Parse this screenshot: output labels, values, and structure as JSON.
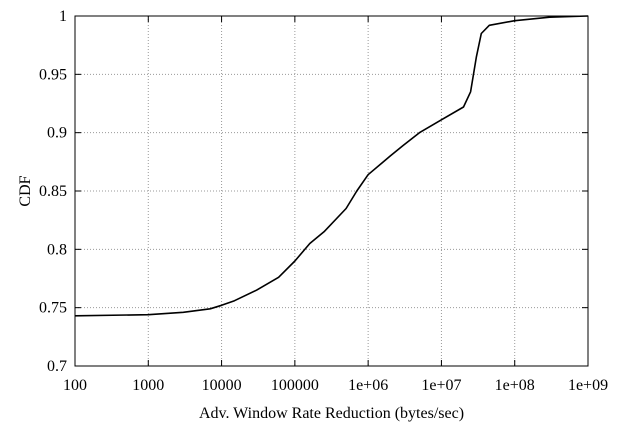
{
  "chart_data": {
    "type": "line",
    "title": "",
    "xlabel": "Adv. Window Rate Reduction (bytes/sec)",
    "ylabel": "CDF",
    "x_scale": "log",
    "xlim": [
      100,
      1000000000
    ],
    "ylim": [
      0.7,
      1.0
    ],
    "x_ticks": [
      100,
      1000,
      10000,
      100000,
      1000000,
      10000000,
      100000000,
      1000000000
    ],
    "x_tick_labels": [
      "100",
      "1000",
      "10000",
      "100000",
      "1e+06",
      "1e+07",
      "1e+08",
      "1e+09"
    ],
    "y_ticks": [
      0.7,
      0.75,
      0.8,
      0.85,
      0.9,
      0.95,
      1.0
    ],
    "y_tick_labels": [
      "0.7",
      "0.75",
      "0.8",
      "0.85",
      "0.9",
      "0.95",
      "1"
    ],
    "grid": true,
    "legend": "none",
    "series": [
      {
        "x": [
          100,
          1000,
          3000,
          7000,
          10000,
          15000,
          30000,
          60000,
          100000,
          160000,
          250000,
          500000,
          700000,
          1000000,
          2000000,
          3000000,
          5000000,
          10000000,
          20000000,
          25000000,
          30000000,
          35000000,
          45000000,
          100000000,
          300000000,
          1000000000
        ],
        "y": [
          0.743,
          0.744,
          0.746,
          0.749,
          0.752,
          0.756,
          0.765,
          0.776,
          0.79,
          0.805,
          0.815,
          0.835,
          0.85,
          0.864,
          0.88,
          0.889,
          0.9,
          0.911,
          0.922,
          0.935,
          0.965,
          0.985,
          0.992,
          0.996,
          0.999,
          1.0
        ]
      }
    ],
    "colors": {
      "line": "#000000",
      "grid": "#9a9a9a",
      "frame": "#000000"
    }
  }
}
